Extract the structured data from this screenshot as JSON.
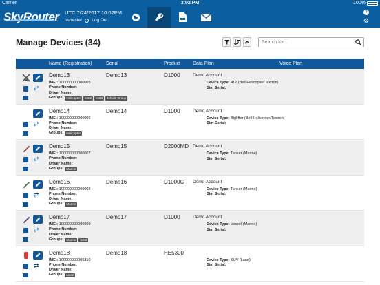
{
  "statusbar": {
    "carrier": "Carrier",
    "time": "3:02 PM",
    "battery": "100%"
  },
  "header": {
    "logo": "SkyRouter",
    "datetime": "UTC 7/24/2017 10:02PM",
    "user": "nsrtester",
    "logout_label": "Log Out",
    "nav": [
      {
        "name": "globe-icon",
        "active": false
      },
      {
        "name": "wrench-icon",
        "active": true
      },
      {
        "name": "document-icon",
        "active": false
      },
      {
        "name": "mail-icon",
        "active": false
      }
    ]
  },
  "page": {
    "title": "Manage Devices (34)",
    "search_placeholder": "Search for...."
  },
  "table": {
    "columns": [
      "Name (Registration)",
      "Serial",
      "Product",
      "Data Plan",
      "Voice Plan"
    ],
    "labels": {
      "imei": "IMEI:",
      "phone": "Phone Number:",
      "driver": "Driver Name:",
      "groups": "Groups:",
      "device_type": "Device Type:",
      "sim": "Sim Serial:"
    },
    "rows": [
      {
        "name": "Demo13",
        "serial": "Demo13",
        "product": "D1000",
        "plan": "Demo Account",
        "imei": "100000000000005",
        "device_type": "412 (Bell Helicopter/Textron)",
        "groups": [
          "Helicopter",
          "test2",
          "test3",
          "Jehicle Group"
        ],
        "vehicle": "helicopter",
        "vehicle_color": "#555555"
      },
      {
        "name": "Demo14",
        "serial": "Demo14",
        "product": "D1000",
        "plan": "Demo Account",
        "imei": "100000000000006",
        "device_type": "Biglifter (Bell Helicopter/Textron)",
        "groups": [
          "Helicopter"
        ],
        "vehicle": "none",
        "vehicle_color": "#ffffff"
      },
      {
        "name": "Demo15",
        "serial": "Demo15",
        "product": "D2000MD",
        "plan": "Demo Account",
        "imei": "100000000000007",
        "device_type": "Tanker (Marine)",
        "groups": [
          "Marine"
        ],
        "vehicle": "boat",
        "vehicle_color": "#d33a3a"
      },
      {
        "name": "Demo16",
        "serial": "Demo16",
        "product": "D1000C",
        "plan": "Demo Account",
        "imei": "100000000000008",
        "device_type": "Tanker (Marine)",
        "groups": [
          "Marine"
        ],
        "vehicle": "boat",
        "vehicle_color": "#3b8f3b"
      },
      {
        "name": "Demo17",
        "serial": "Demo17",
        "product": "D1000",
        "plan": "Demo Account",
        "imei": "100000000000009",
        "device_type": "Vessel (Marine)",
        "groups": [
          "Marine",
          "test3"
        ],
        "vehicle": "boat",
        "vehicle_color": "#7b3b9a"
      },
      {
        "name": "Demo18",
        "serial": "Demo18",
        "product": "HE5300",
        "plan": "",
        "imei": "100000000005310",
        "device_type": "SUV (Land)",
        "groups": [
          "Land"
        ],
        "vehicle": "car",
        "vehicle_color": "#d33a3a"
      }
    ]
  }
}
